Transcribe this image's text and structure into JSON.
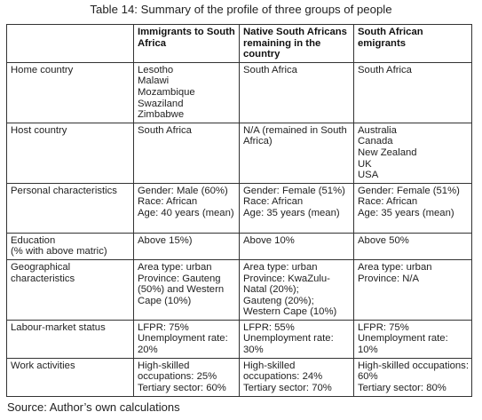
{
  "caption": "Table 14: Summary of the profile of three groups of people",
  "headers": [
    "",
    "Immigrants to South Africa",
    "Native South Africans remaining in the country",
    "South African emigrants"
  ],
  "rows": [
    {
      "label": "Home country",
      "cells": [
        [
          "Lesotho",
          "Malawi",
          "Mozambique",
          "Swaziland",
          "Zimbabwe"
        ],
        [
          "South Africa"
        ],
        [
          "South Africa"
        ]
      ]
    },
    {
      "label": "Host country",
      "cells": [
        [
          "South Africa"
        ],
        [
          "N/A (remained in South Africa)"
        ],
        [
          "Australia",
          "Canada",
          "New Zealand",
          "UK",
          "USA"
        ]
      ]
    },
    {
      "label": "Personal characteristics",
      "cells": [
        [
          "Gender: Male (60%)",
          "Race: African",
          "Age: 40 years (mean)"
        ],
        [
          "Gender: Female (51%)",
          "Race: African",
          "Age: 35 years (mean)"
        ],
        [
          "Gender: Female (51%)",
          "Race: African",
          "Age: 35 years (mean)"
        ]
      ]
    },
    {
      "label": "Education",
      "sublabel": "(% with above matric)",
      "cells": [
        [
          "Above 15%)"
        ],
        [
          "Above 10%"
        ],
        [
          "Above 50%"
        ]
      ]
    },
    {
      "label": "Geographical characteristics",
      "cells": [
        [
          "Area type: urban",
          "Province: Gauteng (50%) and Western Cape (10%)"
        ],
        [
          "Area type: urban",
          "Province: KwaZulu-Natal (20%);",
          "Gauteng (20%);",
          "Western Cape (10%)"
        ],
        [
          "Area type: urban",
          "Province: N/A"
        ]
      ]
    },
    {
      "label": "Labour-market status",
      "cells": [
        [
          "LFPR: 75%",
          "Unemployment rate: 20%"
        ],
        [
          "LFPR: 55%",
          "Unemployment rate: 30%"
        ],
        [
          "LFPR: 75%",
          "Unemployment rate: 10%"
        ]
      ]
    },
    {
      "label": "Work activities",
      "cells": [
        [
          "High-skilled occupations: 25%",
          "Tertiary sector: 60%"
        ],
        [
          "High-skilled occupations: 24%",
          "Tertiary sector: 70%"
        ],
        [
          "High-skilled occupations: 60%",
          "Tertiary sector: 80%"
        ]
      ]
    }
  ],
  "source": "Source: Author’s own calculations"
}
